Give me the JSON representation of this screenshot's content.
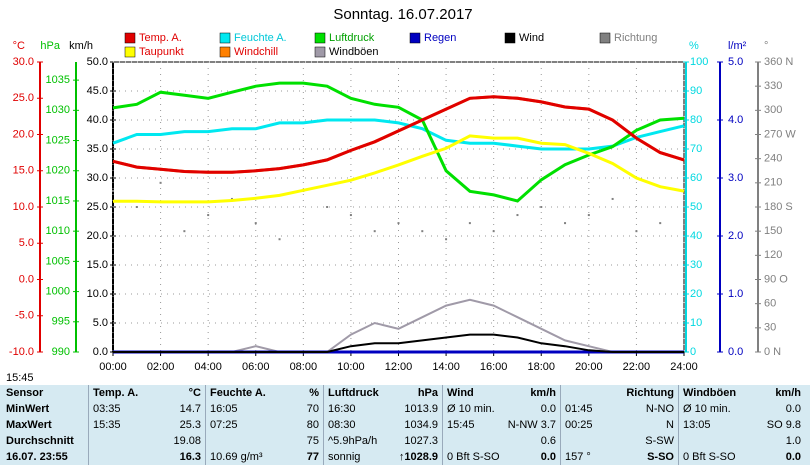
{
  "chart_data": {
    "type": "line",
    "title": "Sonntag. 16.07.2017",
    "x": [
      0,
      1,
      2,
      3,
      4,
      5,
      6,
      7,
      8,
      9,
      10,
      11,
      12,
      13,
      14,
      15,
      16,
      17,
      18,
      19,
      20,
      21,
      22,
      23,
      24
    ],
    "xlim": [
      0,
      24
    ],
    "xticks": [
      {
        "value": 0,
        "label": "00:00"
      },
      {
        "value": 2,
        "label": "02:00"
      },
      {
        "value": 4,
        "label": "04:00"
      },
      {
        "value": 6,
        "label": "06:00"
      },
      {
        "value": 8,
        "label": "08:00"
      },
      {
        "value": 10,
        "label": "10:00"
      },
      {
        "value": 12,
        "label": "12:00"
      },
      {
        "value": 14,
        "label": "14:00"
      },
      {
        "value": 16,
        "label": "16:00"
      },
      {
        "value": 18,
        "label": "18:00"
      },
      {
        "value": 20,
        "label": "20:00"
      },
      {
        "value": 22,
        "label": "22:00"
      },
      {
        "value": 24,
        "label": "24:00"
      }
    ],
    "grid": true,
    "axes": [
      {
        "label": "°C",
        "color": "#e00000",
        "side": "left",
        "lim": [
          -10,
          30
        ],
        "ticks": [
          {
            "value": 30,
            "label": "30.0"
          },
          {
            "value": 25,
            "label": "25.0"
          },
          {
            "value": 20,
            "label": "20.0"
          },
          {
            "value": 15,
            "label": "15.0"
          },
          {
            "value": 10,
            "label": "10.0"
          },
          {
            "value": 5,
            "label": "5.0"
          },
          {
            "value": 0,
            "label": "0.0"
          },
          {
            "value": -5,
            "label": "-5.0"
          },
          {
            "value": -10,
            "label": "-10.0"
          }
        ]
      },
      {
        "label": "hPa",
        "color": "#00c000",
        "side": "left",
        "lim": [
          990,
          1038
        ],
        "ticks": [
          1035,
          1030,
          1025,
          1020,
          1015,
          1010,
          1005,
          1000,
          995,
          990
        ]
      },
      {
        "label": "km/h",
        "color": "#000000",
        "side": "left",
        "lim": [
          0,
          50
        ],
        "ticks": [
          {
            "value": 50,
            "label": "50.0"
          },
          {
            "value": 45,
            "label": "45.0"
          },
          {
            "value": 40,
            "label": "40.0"
          },
          {
            "value": 35,
            "label": "35.0"
          },
          {
            "value": 30,
            "label": "30.0"
          },
          {
            "value": 25,
            "label": "25.0"
          },
          {
            "value": 20,
            "label": "20.0"
          },
          {
            "value": 15,
            "label": "15.0"
          },
          {
            "value": 10,
            "label": "10.0"
          },
          {
            "value": 5,
            "label": "5.0"
          },
          {
            "value": 0,
            "label": "0.0"
          }
        ]
      },
      {
        "label": "%",
        "color": "#00d8e0",
        "side": "right",
        "lim": [
          0,
          100
        ],
        "ticks": [
          100,
          90,
          80,
          70,
          60,
          50,
          40,
          30,
          20,
          10,
          0
        ]
      },
      {
        "label": "l/m²",
        "color": "#0000c0",
        "side": "right",
        "lim": [
          0,
          5
        ],
        "ticks": [
          {
            "value": 5,
            "label": "5.0"
          },
          {
            "value": 4,
            "label": "4.0"
          },
          {
            "value": 3,
            "label": "3.0"
          },
          {
            "value": 2,
            "label": "2.0"
          },
          {
            "value": 1,
            "label": "1.0"
          },
          {
            "value": 0,
            "label": "0.0"
          }
        ]
      },
      {
        "label": "°",
        "color": "#808080",
        "side": "right",
        "lim": [
          0,
          360
        ],
        "ticks": [
          {
            "value": 360,
            "label": "360 N"
          },
          330,
          300,
          {
            "value": 270,
            "label": "270 W"
          },
          240,
          210,
          {
            "value": 180,
            "label": "180 S"
          },
          150,
          120,
          {
            "value": 90,
            "label": "90 O"
          },
          60,
          30,
          {
            "value": 0,
            "label": "0 N"
          }
        ]
      }
    ],
    "series": [
      {
        "name": "Temp. A.",
        "color": "#e00000",
        "legend_color": "#e00000",
        "axis": 0,
        "values": [
          16.3,
          15.5,
          15.2,
          14.9,
          14.8,
          14.8,
          15.0,
          15.3,
          15.8,
          16.5,
          17.8,
          19.0,
          20.5,
          22.0,
          23.5,
          25.0,
          25.2,
          25.0,
          24.5,
          23.8,
          23.5,
          22.0,
          19.5,
          17.5,
          16.5
        ]
      },
      {
        "name": "Feuchte A.",
        "color": "#00e8f0",
        "legend_color": "#00c8d8",
        "axis": 3,
        "values": [
          72,
          75,
          75,
          76,
          76,
          77,
          77,
          79,
          79,
          80,
          80,
          80,
          79,
          77,
          73,
          72,
          72,
          71,
          70,
          70,
          70,
          71,
          74,
          76,
          78
        ]
      },
      {
        "name": "Luftdruck",
        "color": "#00e000",
        "legend_color": "#00a000",
        "axis": 1,
        "values": [
          1030.4,
          1031,
          1033,
          1032.5,
          1032,
          1033,
          1034,
          1034.5,
          1034.5,
          1034,
          1032,
          1031,
          1030.5,
          1028.4,
          1020,
          1016.6,
          1016,
          1015,
          1018.5,
          1021,
          1022.6,
          1024,
          1026.7,
          1028.4,
          1028.7
        ]
      },
      {
        "name": "Regen",
        "color": "#0000c0",
        "legend_color": "#0000c0",
        "axis": 4,
        "values": [
          0,
          0,
          0,
          0,
          0,
          0,
          0,
          0,
          0,
          0,
          0,
          0,
          0,
          0,
          0,
          0,
          0,
          0,
          0,
          0,
          0,
          0,
          0,
          0,
          0
        ]
      },
      {
        "name": "Wind",
        "color": "#000000",
        "legend_color": "#000000",
        "axis": 2,
        "values": [
          0,
          0,
          0,
          0,
          0,
          0,
          0,
          0,
          0,
          0,
          1,
          1.5,
          1.5,
          2,
          2.5,
          3,
          3,
          2.5,
          1.5,
          1,
          0.3,
          0,
          0,
          0,
          0
        ]
      },
      {
        "name": "Richtung",
        "color": "#808080",
        "legend_color": "#808080",
        "axis": 5,
        "style": "dots",
        "values": [
          200,
          180,
          210,
          150,
          170,
          190,
          160,
          140,
          200,
          180,
          170,
          150,
          160,
          150,
          140,
          160,
          150,
          170,
          180,
          160,
          170,
          190,
          150,
          160,
          157
        ]
      },
      {
        "name": "Taupunkt",
        "color": "#ffff00",
        "legend_color": "#e00000",
        "axis": 0,
        "values": [
          10.8,
          10.8,
          10.7,
          10.7,
          10.7,
          10.9,
          11.2,
          11.6,
          12.3,
          13.0,
          13.7,
          14.7,
          15.8,
          17.0,
          18.1,
          19.8,
          19.5,
          19.5,
          18.8,
          18.6,
          17.4,
          16.0,
          14.0,
          12.8,
          12.2
        ]
      },
      {
        "name": "Windchill",
        "color": "#ff8000",
        "legend_color": "#e00000",
        "axis": 0,
        "values": [
          16.3,
          15.5,
          15.2,
          14.9,
          14.8,
          14.8,
          15.0,
          15.3,
          15.8,
          16.5,
          17.8,
          19.0,
          20.5,
          22.0,
          23.5,
          25.0,
          25.2,
          25.0,
          24.5,
          23.8,
          23.5,
          22.0,
          19.5,
          17.5,
          16.5
        ]
      },
      {
        "name": "Windböen",
        "color": "#a09aa8",
        "legend_color": "#000000",
        "axis": 2,
        "values": [
          0,
          0,
          0,
          0,
          0,
          0,
          1,
          0,
          0,
          0,
          3,
          5,
          4,
          6,
          8,
          9,
          8,
          6,
          4,
          2,
          1,
          0,
          0,
          0,
          0
        ]
      }
    ],
    "footer_time": "15:45"
  },
  "table": {
    "header": [
      "Sensor",
      [
        "Temp. A.",
        "°C"
      ],
      [
        "Feuchte A.",
        "%"
      ],
      [
        "Luftdruck",
        "hPa"
      ],
      [
        "Wind",
        "km/h"
      ],
      [
        "Richtung"
      ],
      [
        "Windböen",
        "km/h"
      ]
    ],
    "rows": [
      [
        "MinWert",
        [
          "03:35",
          "14.7"
        ],
        [
          "16:05",
          "70"
        ],
        [
          "16:30",
          "1013.9"
        ],
        [
          "Ø 10 min.",
          "0.0"
        ],
        [
          "01:45",
          "N-NO"
        ],
        [
          "Ø 10 min.",
          "0.0"
        ]
      ],
      [
        "MaxWert",
        [
          "15:35",
          "25.3"
        ],
        [
          "07:25",
          "80"
        ],
        [
          "08:30",
          "1034.9"
        ],
        [
          "15:45",
          "N-NW 3.7"
        ],
        [
          "00:25",
          "N"
        ],
        [
          "13:05",
          "SO 9.8"
        ]
      ],
      [
        "Durchschnitt",
        [
          "19.08"
        ],
        [
          "75"
        ],
        [
          "^5.9hPa/h",
          "1027.3"
        ],
        [
          "0.6"
        ],
        [
          "S-SW"
        ],
        [
          "1.0"
        ]
      ],
      [
        "16.07. 23:55",
        [
          "16.3"
        ],
        [
          "10.69 g/m³",
          "77"
        ],
        [
          "sonnig",
          "↑1028.9"
        ],
        [
          "0 Bft S-SO",
          "0.0"
        ],
        [
          "157 °",
          "S-SO"
        ],
        [
          "0 Bft S-SO",
          "0.0"
        ]
      ]
    ]
  }
}
